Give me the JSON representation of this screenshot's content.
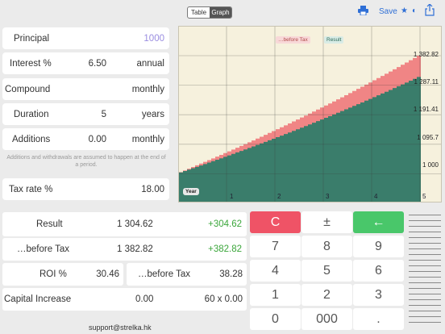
{
  "toolbar": {
    "tab_table": "Table",
    "tab_graph": "Graph",
    "save_label": "Save",
    "print_icon": "printer-icon",
    "star_icon": "star-icon",
    "contrast_icon": "contrast-icon",
    "share_icon": "share-icon"
  },
  "inputs": {
    "principal": {
      "label": "Principal",
      "value": "1000"
    },
    "interest": {
      "label": "Interest %",
      "value": "6.50",
      "unit": "annual"
    },
    "compound": {
      "label": "Compound",
      "unit": "monthly"
    },
    "duration": {
      "label": "Duration",
      "value": "5",
      "unit": "years"
    },
    "additions": {
      "label": "Additions",
      "value": "0.00",
      "unit": "monthly"
    },
    "note": "Additions and withdrawals are assumed to happen at the end of a period.",
    "tax_rate": {
      "label": "Tax rate %",
      "value": "18.00"
    }
  },
  "chart_data": {
    "type": "area",
    "series": [
      {
        "name": "…before Tax",
        "color": "#f08585"
      },
      {
        "name": "Result",
        "color": "#3a7d6b"
      }
    ],
    "x_label": "Year",
    "x_ticks": [
      "1",
      "2",
      "3",
      "4",
      "5"
    ],
    "y_ticks": [
      "1 000",
      "1 095.7",
      "1 191.41",
      "1 287.11",
      "1 382.82"
    ],
    "ylim": [
      904.3,
      1382.82
    ],
    "principal": 1000,
    "rate": 0.065,
    "tax": 0.18,
    "periods": 60
  },
  "results": {
    "result_label": "Result",
    "result_value": "1 304.62",
    "result_gain": "+304.62",
    "before_tax_label": "…before Tax",
    "before_tax_value": "1 382.82",
    "before_tax_gain": "+382.82",
    "roi_label": "ROI %",
    "roi_value": "30.46",
    "roi_before_tax_label": "…before Tax",
    "roi_before_tax_value": "38.28",
    "capital_label": "Capital Increase",
    "capital_value": "0.00",
    "capital_formula": "60 x 0.00"
  },
  "keypad": {
    "clear": "C",
    "sign": "±",
    "back": "←",
    "k7": "7",
    "k8": "8",
    "k9": "9",
    "k4": "4",
    "k5": "5",
    "k6": "6",
    "k1": "1",
    "k2": "2",
    "k3": "3",
    "k0": "0",
    "k000": "000",
    "dot": "."
  },
  "footer": {
    "support": "support@strelka.hk"
  }
}
